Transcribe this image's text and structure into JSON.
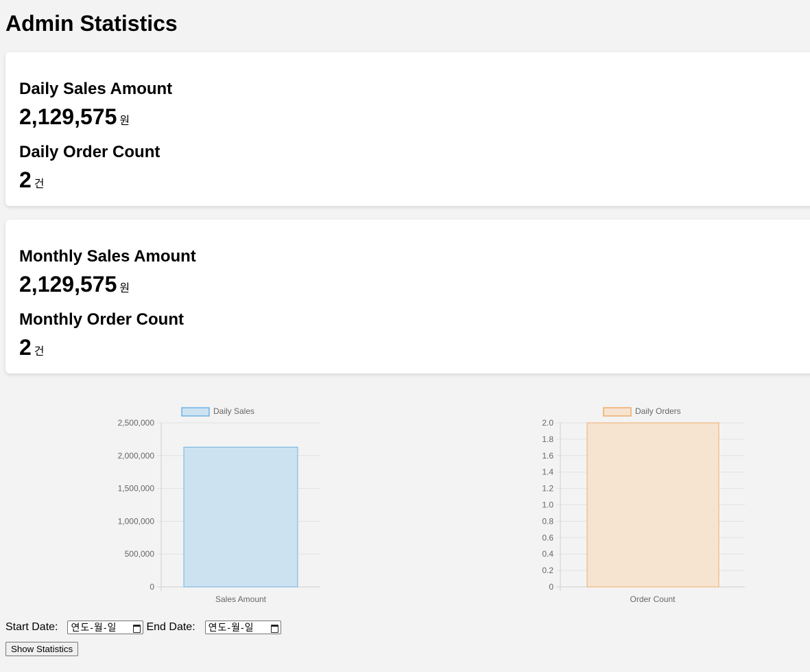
{
  "page": {
    "title": "Admin Statistics"
  },
  "daily_card": {
    "sales_label": "Daily Sales Amount",
    "sales_value": "2,129,575",
    "sales_unit": "원",
    "orders_label": "Daily Order Count",
    "orders_value": "2",
    "orders_unit": "건"
  },
  "monthly_card": {
    "sales_label": "Monthly Sales Amount",
    "sales_value": "2,129,575",
    "sales_unit": "원",
    "orders_label": "Monthly Order Count",
    "orders_value": "2",
    "orders_unit": "건"
  },
  "filters": {
    "start_label": "Start Date:",
    "start_placeholder": "연도-월-일",
    "end_label": "End Date:",
    "end_placeholder": "연도-월-일",
    "submit_label": "Show Statistics"
  },
  "chart_data": [
    {
      "type": "bar",
      "categories": [
        "Sales Amount"
      ],
      "series": [
        {
          "name": "Daily Sales",
          "values": [
            2129575
          ]
        }
      ],
      "ylim": [
        0,
        2500000
      ],
      "yticks": [
        0,
        500000,
        1000000,
        1500000,
        2000000,
        2500000
      ],
      "ytick_labels": [
        "0",
        "500,000",
        "1,000,000",
        "1,500,000",
        "2,000,000",
        "2,500,000"
      ],
      "grid": true,
      "legend": "top",
      "colors": {
        "fill": "#cde2f1",
        "stroke": "#6fb3e4"
      }
    },
    {
      "type": "bar",
      "categories": [
        "Order Count"
      ],
      "series": [
        {
          "name": "Daily Orders",
          "values": [
            2
          ]
        }
      ],
      "ylim": [
        0,
        2
      ],
      "yticks": [
        0,
        0.2,
        0.4,
        0.6,
        0.8,
        1.0,
        1.2,
        1.4,
        1.6,
        1.8,
        2.0
      ],
      "ytick_labels": [
        "0",
        "0.2",
        "0.4",
        "0.6",
        "0.8",
        "1.0",
        "1.2",
        "1.4",
        "1.6",
        "1.8",
        "2.0"
      ],
      "grid": true,
      "legend": "top",
      "colors": {
        "fill": "#f6e4d1",
        "stroke": "#f0ad6a"
      }
    }
  ]
}
